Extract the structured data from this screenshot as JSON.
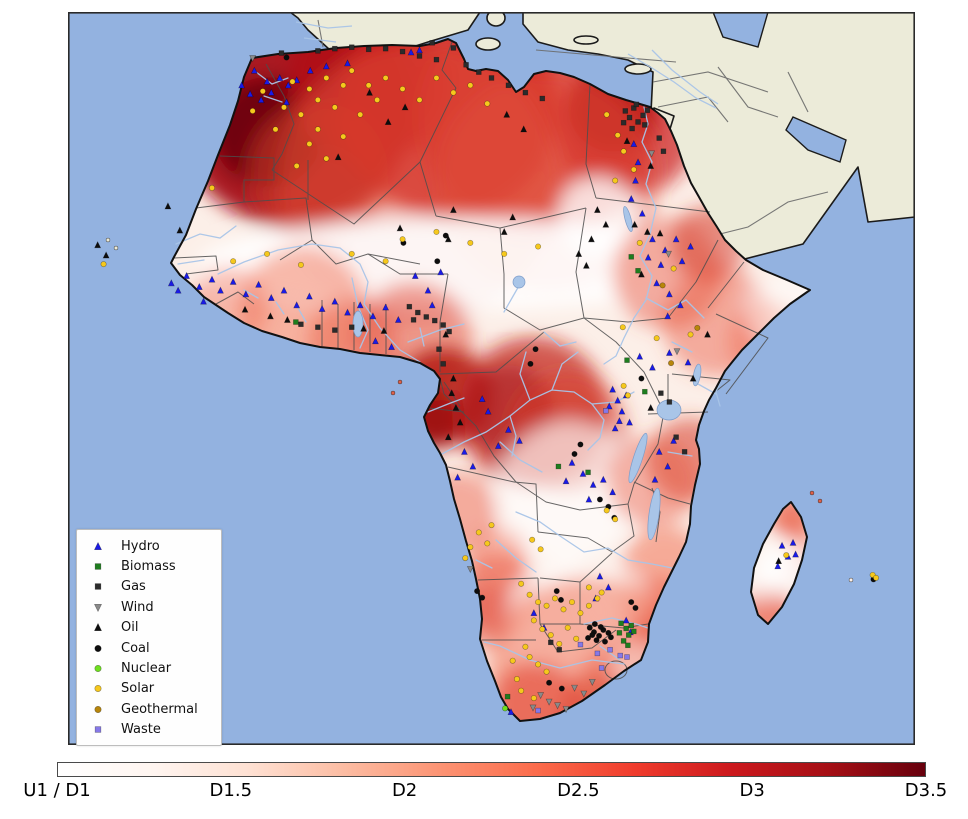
{
  "figure": {
    "background_color": "#ffffff",
    "map_frame_color": "#2a2a2a"
  },
  "map": {
    "region": "Africa",
    "ocean_color": "#93b2e0",
    "other_land_color": "#ecebd9",
    "coastline_color": "#111111",
    "country_border_color": "#4d4d4d",
    "river_color": "#a9c5e8",
    "heat_low_color": "#fff5f0",
    "heat_high_color": "#67000d"
  },
  "legend": {
    "items": [
      {
        "label": "Hydro",
        "shape": "triangle-up",
        "color": "#1a1ae6"
      },
      {
        "label": "Biomass",
        "shape": "square",
        "color": "#1e7d1e"
      },
      {
        "label": "Gas",
        "shape": "square",
        "color": "#2b2b2b"
      },
      {
        "label": "Wind",
        "shape": "triangle-down",
        "color": "#8a8a8a"
      },
      {
        "label": "Oil",
        "shape": "triangle-up",
        "color": "#0d0d0d"
      },
      {
        "label": "Coal",
        "shape": "circle",
        "color": "#0d0d0d"
      },
      {
        "label": "Nuclear",
        "shape": "circle",
        "color": "#6fe01f"
      },
      {
        "label": "Solar",
        "shape": "circle",
        "color": "#f6c81d"
      },
      {
        "label": "Geothermal",
        "shape": "circle",
        "color": "#b8860b"
      },
      {
        "label": "Waste",
        "shape": "square",
        "color": "#8678e8"
      }
    ]
  },
  "colorbar": {
    "tick_labels": [
      "U1 / D1",
      "D1.5",
      "D2",
      "D2.5",
      "D3",
      "D3.5"
    ],
    "gradient_stops": [
      "#ffffff",
      "#fff5f0",
      "#fee0d2",
      "#fcbba1",
      "#fc9272",
      "#fb6a4a",
      "#ef3b2c",
      "#cb181d",
      "#a50f15",
      "#67000d"
    ]
  },
  "chart_data": {
    "type": "heatmap",
    "title": "",
    "region": "Africa",
    "colorbar": {
      "orientation": "horizontal",
      "tick_labels": [
        "U1 / D1",
        "D1.5",
        "D2",
        "D2.5",
        "D3",
        "D3.5"
      ],
      "colormap": "white-to-dark-red"
    },
    "legend_position": "lower-left",
    "point_categories": [
      "Hydro",
      "Biomass",
      "Gas",
      "Wind",
      "Oil",
      "Coal",
      "Nuclear",
      "Solar",
      "Geothermal",
      "Waste"
    ]
  },
  "markers": {
    "hydro": [
      [
        22,
        8
      ],
      [
        23.5,
        9.5
      ],
      [
        25,
        9
      ],
      [
        24,
        11
      ],
      [
        26,
        10
      ],
      [
        22.8,
        12
      ],
      [
        25.8,
        12.3
      ],
      [
        27,
        9.3
      ],
      [
        28.6,
        8
      ],
      [
        30.5,
        7.4
      ],
      [
        33,
        7
      ],
      [
        20.5,
        10
      ],
      [
        21.5,
        11.2
      ],
      [
        40.5,
        5.5
      ],
      [
        41.5,
        5.2
      ],
      [
        66.8,
        18
      ],
      [
        67.3,
        20.5
      ],
      [
        67,
        23
      ],
      [
        66.5,
        25.5
      ],
      [
        67.8,
        27.5
      ],
      [
        14,
        36
      ],
      [
        15.5,
        37.5
      ],
      [
        17,
        36.5
      ],
      [
        18,
        38
      ],
      [
        19.5,
        36.8
      ],
      [
        21,
        38.5
      ],
      [
        22.5,
        37.2
      ],
      [
        24,
        39
      ],
      [
        25.5,
        38
      ],
      [
        27,
        40
      ],
      [
        28.5,
        38.8
      ],
      [
        30,
        40.5
      ],
      [
        31.5,
        39.5
      ],
      [
        33,
        41
      ],
      [
        34.5,
        40
      ],
      [
        36,
        41.5
      ],
      [
        37.5,
        40.3
      ],
      [
        39,
        42
      ],
      [
        16,
        39.5
      ],
      [
        13,
        38
      ],
      [
        12.2,
        37
      ],
      [
        41,
        36
      ],
      [
        42.5,
        38
      ],
      [
        44,
        35.5
      ],
      [
        43,
        40
      ],
      [
        69,
        31
      ],
      [
        70.5,
        32.5
      ],
      [
        71.8,
        31
      ],
      [
        70,
        34.5
      ],
      [
        68.5,
        33.5
      ],
      [
        72.5,
        34
      ],
      [
        73.5,
        32
      ],
      [
        69.5,
        37
      ],
      [
        71,
        38.5
      ],
      [
        72.3,
        40
      ],
      [
        70.8,
        41.5
      ],
      [
        64.3,
        51.5
      ],
      [
        64.9,
        53
      ],
      [
        65.4,
        54.5
      ],
      [
        63.9,
        53.8
      ],
      [
        65.9,
        52.3
      ],
      [
        65.1,
        55.8
      ],
      [
        64.6,
        56.8
      ],
      [
        66.3,
        56
      ],
      [
        67.5,
        47
      ],
      [
        69,
        48.5
      ],
      [
        71,
        46.5
      ],
      [
        73.2,
        47.8
      ],
      [
        59.5,
        61.5
      ],
      [
        60.8,
        63
      ],
      [
        62,
        64.5
      ],
      [
        63.2,
        63.8
      ],
      [
        64.3,
        65.5
      ],
      [
        58.8,
        64
      ],
      [
        61.5,
        66.5
      ],
      [
        52,
        57
      ],
      [
        53.3,
        58.5
      ],
      [
        50.8,
        59.2
      ],
      [
        46.8,
        60
      ],
      [
        47.8,
        62
      ],
      [
        46,
        63.5
      ],
      [
        69.8,
        60
      ],
      [
        70.8,
        62
      ],
      [
        69.3,
        63.8
      ],
      [
        71.5,
        58.5
      ],
      [
        62.8,
        77
      ],
      [
        63.8,
        78.5
      ],
      [
        62.3,
        80
      ],
      [
        55,
        82
      ],
      [
        56.2,
        84
      ],
      [
        65.9,
        83
      ],
      [
        66.4,
        84.6
      ],
      [
        52.3,
        95.5
      ],
      [
        84.3,
        72.8
      ],
      [
        85,
        74.3
      ],
      [
        85.6,
        72.4
      ],
      [
        83.8,
        75.6
      ],
      [
        85.9,
        74
      ],
      [
        48.9,
        52.8
      ],
      [
        49.6,
        54.5
      ],
      [
        36.3,
        44.9
      ],
      [
        38.2,
        45.7
      ]
    ],
    "biomass": [
      [
        65.3,
        83.4
      ],
      [
        65.9,
        84.1
      ],
      [
        66.2,
        85
      ],
      [
        65.6,
        85.8
      ],
      [
        66.5,
        83.7
      ],
      [
        65.1,
        84.7
      ],
      [
        66.8,
        84.5
      ],
      [
        67.3,
        35.3
      ],
      [
        66.5,
        33.4
      ],
      [
        68.1,
        51.8
      ],
      [
        66,
        47.5
      ],
      [
        26.9,
        42.3
      ],
      [
        57.9,
        62
      ],
      [
        61.4,
        62.8
      ],
      [
        51.9,
        93.4
      ],
      [
        66.1,
        86.4
      ]
    ],
    "gas": [
      [
        29.5,
        5.3
      ],
      [
        31.5,
        5
      ],
      [
        33.5,
        4.8
      ],
      [
        35.5,
        5.1
      ],
      [
        37.5,
        5
      ],
      [
        39.5,
        5.4
      ],
      [
        41.5,
        6
      ],
      [
        43.5,
        6.5
      ],
      [
        45.5,
        4.9
      ],
      [
        47,
        7.2
      ],
      [
        48.5,
        8.2
      ],
      [
        50,
        9
      ],
      [
        52,
        10
      ],
      [
        54,
        11
      ],
      [
        56,
        11.8
      ],
      [
        43,
        4.2
      ],
      [
        25.2,
        5.6
      ],
      [
        65.8,
        13.5
      ],
      [
        66.3,
        14.4
      ],
      [
        66.8,
        13.1
      ],
      [
        67.3,
        15
      ],
      [
        67.9,
        14.1
      ],
      [
        66.6,
        15.9
      ],
      [
        67.1,
        12.6
      ],
      [
        68.1,
        15.4
      ],
      [
        65.6,
        15.1
      ],
      [
        68.4,
        13.4
      ],
      [
        69.8,
        17.2
      ],
      [
        70.3,
        19
      ],
      [
        40.3,
        40.2
      ],
      [
        41.3,
        41
      ],
      [
        42.3,
        41.6
      ],
      [
        43.3,
        42.1
      ],
      [
        44.3,
        42.7
      ],
      [
        45,
        43.6
      ],
      [
        40.8,
        42
      ],
      [
        43.8,
        46
      ],
      [
        44.3,
        48
      ],
      [
        29.5,
        43
      ],
      [
        31.5,
        43.4
      ],
      [
        33.5,
        43
      ],
      [
        27.5,
        42.6
      ],
      [
        70,
        52
      ],
      [
        71,
        53.2
      ],
      [
        71.8,
        58
      ],
      [
        72.8,
        60
      ],
      [
        57,
        86
      ],
      [
        58,
        87
      ]
    ],
    "wind": [
      [
        21.8,
        6.3
      ],
      [
        68.9,
        19.3
      ],
      [
        70.9,
        33
      ],
      [
        71.9,
        46.3
      ],
      [
        55.8,
        93.2
      ],
      [
        56.8,
        94.1
      ],
      [
        57.8,
        94.6
      ],
      [
        54.9,
        94.9
      ],
      [
        59.8,
        92.2
      ],
      [
        60.9,
        93
      ],
      [
        47.5,
        76
      ],
      [
        58.8,
        95.1
      ],
      [
        61.9,
        91.4
      ]
    ],
    "oil": [
      [
        3.5,
        31.8
      ],
      [
        4.5,
        33.2
      ],
      [
        11.8,
        26.5
      ],
      [
        13.2,
        29.8
      ],
      [
        62.5,
        27
      ],
      [
        63.5,
        29
      ],
      [
        61.8,
        31
      ],
      [
        60.3,
        33
      ],
      [
        61.2,
        34.6
      ],
      [
        51.5,
        30
      ],
      [
        52.5,
        28
      ],
      [
        39.2,
        29.5
      ],
      [
        44.9,
        31
      ],
      [
        45.5,
        27
      ],
      [
        66,
        17.6
      ],
      [
        68.8,
        21
      ],
      [
        51.8,
        14
      ],
      [
        53.8,
        16
      ],
      [
        37.8,
        15
      ],
      [
        39.8,
        13
      ],
      [
        35.6,
        11
      ],
      [
        31.9,
        19.8
      ],
      [
        45.3,
        52
      ],
      [
        45.8,
        54
      ],
      [
        46.3,
        56
      ],
      [
        44.9,
        58
      ],
      [
        45.5,
        50
      ],
      [
        44.6,
        44
      ],
      [
        83.9,
        74.9
      ],
      [
        73.8,
        50
      ],
      [
        68.8,
        54
      ],
      [
        68.4,
        30
      ],
      [
        66.9,
        29
      ],
      [
        67.7,
        35.8
      ],
      [
        69.9,
        30.2
      ],
      [
        20.9,
        40.6
      ],
      [
        23.9,
        41.5
      ],
      [
        25.9,
        42
      ],
      [
        34.9,
        43.2
      ],
      [
        37.3,
        43.5
      ],
      [
        75.5,
        44
      ]
    ],
    "coal": [
      [
        61.6,
        84
      ],
      [
        62.1,
        84.6
      ],
      [
        62.7,
        85.1
      ],
      [
        63.2,
        84.3
      ],
      [
        62.4,
        85.7
      ],
      [
        63.4,
        85.9
      ],
      [
        61.9,
        85
      ],
      [
        62.9,
        83.9
      ],
      [
        64.1,
        85.3
      ],
      [
        61.4,
        85.4
      ],
      [
        63.8,
        84.7
      ],
      [
        62.2,
        83.5
      ],
      [
        62.8,
        66.5
      ],
      [
        63.8,
        67.5
      ],
      [
        64.5,
        69
      ],
      [
        57.7,
        79
      ],
      [
        58.2,
        80.2
      ],
      [
        59.8,
        60.3
      ],
      [
        60.5,
        59
      ],
      [
        43.6,
        34
      ],
      [
        39.6,
        31.5
      ],
      [
        44.6,
        30.5
      ],
      [
        25.8,
        6.2
      ],
      [
        54.6,
        48
      ],
      [
        55.2,
        46
      ],
      [
        67.7,
        50
      ],
      [
        66.5,
        80.5
      ],
      [
        67,
        81.3
      ],
      [
        48.3,
        79
      ],
      [
        48.9,
        79.9
      ],
      [
        56.8,
        91.5
      ],
      [
        58.3,
        92.3
      ],
      [
        95.1,
        77.4
      ]
    ],
    "nuclear": [
      [
        51.6,
        95
      ]
    ],
    "solar": [
      [
        26.5,
        9.5
      ],
      [
        28.5,
        10.5
      ],
      [
        30.5,
        9
      ],
      [
        32.5,
        10
      ],
      [
        29.5,
        12
      ],
      [
        31.5,
        13
      ],
      [
        27.5,
        14
      ],
      [
        29.5,
        16
      ],
      [
        28.5,
        18
      ],
      [
        30.5,
        20
      ],
      [
        27,
        21
      ],
      [
        32.5,
        17
      ],
      [
        34.5,
        14
      ],
      [
        35.5,
        10
      ],
      [
        36.5,
        12
      ],
      [
        37.5,
        9
      ],
      [
        39.5,
        10.5
      ],
      [
        41.5,
        12
      ],
      [
        33.5,
        8
      ],
      [
        25.5,
        13
      ],
      [
        24.5,
        16
      ],
      [
        23,
        10.8
      ],
      [
        21.8,
        13.5
      ],
      [
        43.5,
        9
      ],
      [
        45.5,
        11
      ],
      [
        47.5,
        10
      ],
      [
        49.5,
        12.5
      ],
      [
        63.6,
        14
      ],
      [
        65.6,
        19
      ],
      [
        64.6,
        23
      ],
      [
        66.8,
        21.5
      ],
      [
        64.9,
        16.8
      ],
      [
        17,
        24
      ],
      [
        4.2,
        34.4
      ],
      [
        19.5,
        34
      ],
      [
        23.5,
        33
      ],
      [
        27.5,
        34.5
      ],
      [
        33.5,
        33
      ],
      [
        37.5,
        34
      ],
      [
        39.5,
        31
      ],
      [
        43.5,
        30
      ],
      [
        47.5,
        31.5
      ],
      [
        51.5,
        33
      ],
      [
        55.5,
        32
      ],
      [
        67.5,
        31.5
      ],
      [
        71.5,
        35
      ],
      [
        73.5,
        44
      ],
      [
        69.5,
        44.5
      ],
      [
        65.5,
        43
      ],
      [
        65.6,
        51
      ],
      [
        66.1,
        52.3
      ],
      [
        48.5,
        71
      ],
      [
        49.5,
        72.5
      ],
      [
        47.5,
        73
      ],
      [
        50,
        70
      ],
      [
        46.9,
        74.5
      ],
      [
        54.8,
        72
      ],
      [
        55.8,
        73.3
      ],
      [
        63.6,
        68
      ],
      [
        64.6,
        69.2
      ],
      [
        53.5,
        78
      ],
      [
        54.5,
        79.5
      ],
      [
        55.5,
        80.5
      ],
      [
        56.5,
        81
      ],
      [
        57.5,
        80
      ],
      [
        58.5,
        81.5
      ],
      [
        59.5,
        80.5
      ],
      [
        60.5,
        82
      ],
      [
        61.5,
        81
      ],
      [
        62.5,
        80
      ],
      [
        55,
        83
      ],
      [
        56,
        84.2
      ],
      [
        57,
        85
      ],
      [
        58,
        86.2
      ],
      [
        54,
        86.6
      ],
      [
        54.5,
        88
      ],
      [
        55.5,
        89
      ],
      [
        56.5,
        90
      ],
      [
        53,
        91
      ],
      [
        53.5,
        92.6
      ],
      [
        55,
        93.6
      ],
      [
        61.5,
        78.5
      ],
      [
        63,
        79.2
      ],
      [
        59,
        84
      ],
      [
        60,
        85.5
      ],
      [
        52.5,
        88.5
      ],
      [
        84.8,
        74.1
      ],
      [
        95,
        76.8
      ],
      [
        95.4,
        77.2
      ]
    ],
    "geothermal": [
      [
        74.3,
        43.1
      ],
      [
        71.2,
        47.9
      ],
      [
        70.2,
        37.3
      ]
    ],
    "waste": [
      [
        62.5,
        87.5
      ],
      [
        64,
        87
      ],
      [
        66,
        88
      ],
      [
        63,
        89.5
      ],
      [
        55.5,
        95.3
      ],
      [
        63.5,
        54.4
      ],
      [
        60.5,
        86.3
      ],
      [
        65.2,
        87.8
      ]
    ]
  }
}
